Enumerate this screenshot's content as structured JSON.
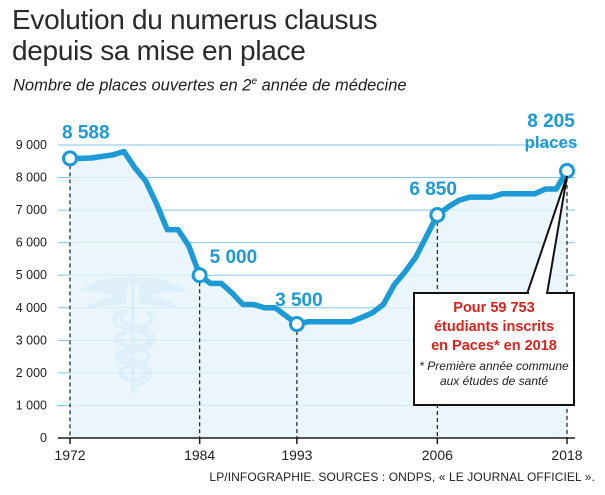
{
  "header": {
    "title_line1": "Evolution du numerus clausus",
    "title_line2": "depuis sa mise en place",
    "subtitle_before": "Nombre de places ouvertes en 2",
    "subtitle_sup": "e",
    "subtitle_after": " année de médecine"
  },
  "callout": {
    "line1": "Pour 59 753",
    "line2": "étudiants inscrits",
    "line3": "en Paces* en 2018",
    "note1": "* Première année commune",
    "note2": "aux études de santé"
  },
  "source": "LP/INFOGRAPHIE. SOURCES : ONDPS, « LE JOURNAL OFFICIEL ».",
  "colors": {
    "line": "#1b9ad6",
    "area": "#e6f4fb",
    "label": "#1b9ad6",
    "highlight": "#d7231e",
    "grid": "#1b9ad6"
  },
  "chart_data": {
    "type": "area",
    "title": "Evolution du numerus clausus depuis sa mise en place",
    "subtitle": "Nombre de places ouvertes en 2e année de médecine",
    "xlim": [
      1972,
      2018
    ],
    "ylim": [
      0,
      9000
    ],
    "y_ticks": [
      0,
      1000,
      2000,
      3000,
      4000,
      5000,
      6000,
      7000,
      8000,
      9000
    ],
    "y_tick_labels": [
      "0",
      "1 000",
      "2 000",
      "3 000",
      "4 000",
      "5 000",
      "6 000",
      "7 000",
      "8 000",
      "9 000"
    ],
    "x_ticks": [
      1972,
      1984,
      1993,
      2006,
      2018
    ],
    "grid": true,
    "series": [
      {
        "x": [
          1972,
          1973,
          1974,
          1975,
          1976,
          1977,
          1978,
          1979,
          1980,
          1981,
          1982,
          1983,
          1984,
          1985,
          1986,
          1987,
          1988,
          1989,
          1990,
          1991,
          1992,
          1993,
          1994,
          1995,
          1996,
          1997,
          1998,
          1999,
          2000,
          2001,
          2002,
          2003,
          2004,
          2005,
          2006,
          2007,
          2008,
          2009,
          2010,
          2011,
          2012,
          2013,
          2014,
          2015,
          2016,
          2017,
          2018
        ],
        "values": [
          8588,
          8588,
          8600,
          8650,
          8700,
          8800,
          8300,
          7900,
          7200,
          6400,
          6400,
          5900,
          5000,
          4750,
          4750,
          4450,
          4100,
          4100,
          4000,
          4000,
          3750,
          3500,
          3570,
          3570,
          3570,
          3570,
          3570,
          3700,
          3850,
          4100,
          4700,
          5100,
          5550,
          6200,
          6850,
          7100,
          7300,
          7400,
          7400,
          7400,
          7500,
          7500,
          7500,
          7500,
          7650,
          7650,
          8205
        ]
      }
    ],
    "annotations": [
      {
        "x": 1972,
        "y": 8588,
        "label": "8 588"
      },
      {
        "x": 1984,
        "y": 5000,
        "label": "5 000"
      },
      {
        "x": 1993,
        "y": 3500,
        "label": "3 500"
      },
      {
        "x": 2006,
        "y": 6850,
        "label": "6 850"
      },
      {
        "x": 2018,
        "y": 8205,
        "label": "8 205",
        "label2": "places"
      }
    ]
  }
}
